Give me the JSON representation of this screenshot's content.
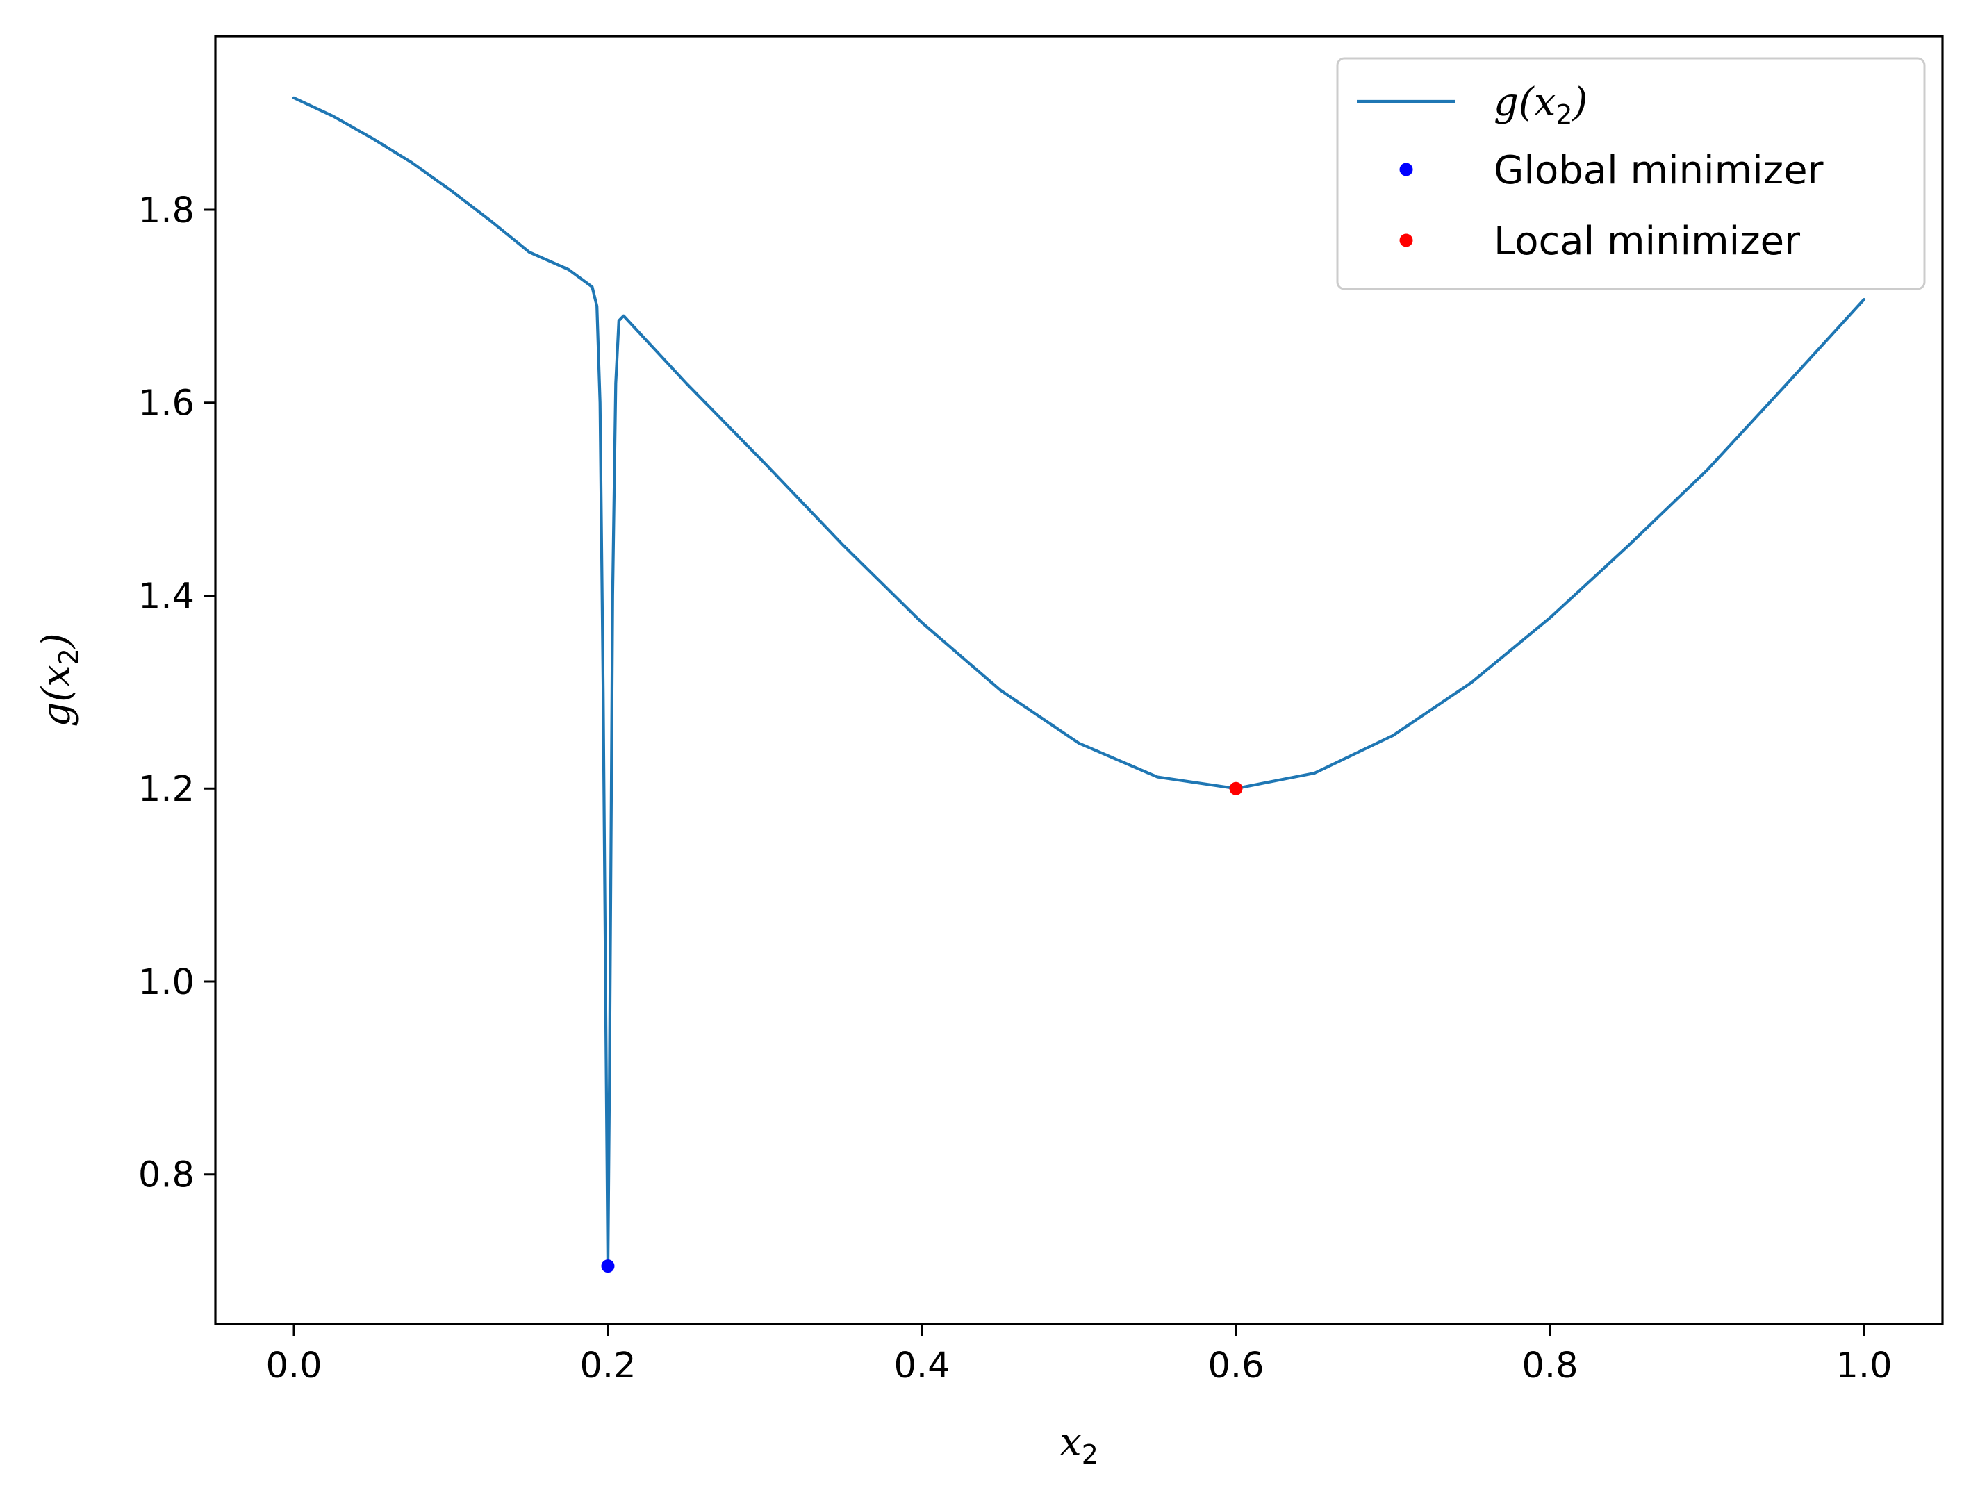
{
  "chart_data": {
    "type": "line",
    "title": "",
    "xlabel": "x_2",
    "ylabel": "g(x_2)",
    "xlim": [
      -0.05,
      1.05
    ],
    "ylim": [
      0.645,
      1.98
    ],
    "xticks": [
      0.0,
      0.2,
      0.4,
      0.6,
      0.8,
      1.0
    ],
    "xtick_labels": [
      "0.0",
      "0.2",
      "0.4",
      "0.6",
      "0.8",
      "1.0"
    ],
    "yticks": [
      0.8,
      1.0,
      1.2,
      1.4,
      1.6,
      1.8
    ],
    "ytick_labels": [
      "0.8",
      "1.0",
      "1.2",
      "1.4",
      "1.6",
      "1.8"
    ],
    "grid": false,
    "legend_position": "top-right",
    "series": [
      {
        "name": "g(x_2)",
        "kind": "line",
        "color": "#1f77b4",
        "x": [
          0.0,
          0.025,
          0.05,
          0.075,
          0.1,
          0.125,
          0.15,
          0.175,
          0.19,
          0.193,
          0.195,
          0.197,
          0.199,
          0.2,
          0.201,
          0.203,
          0.205,
          0.207,
          0.21,
          0.25,
          0.3,
          0.35,
          0.4,
          0.45,
          0.5,
          0.55,
          0.6,
          0.65,
          0.7,
          0.75,
          0.8,
          0.85,
          0.9,
          0.95,
          1.0
        ],
        "y": [
          1.916,
          1.897,
          1.874,
          1.849,
          1.82,
          1.789,
          1.756,
          1.738,
          1.72,
          1.7,
          1.6,
          1.3,
          0.9,
          0.705,
          0.9,
          1.4,
          1.62,
          1.685,
          1.69,
          1.62,
          1.537,
          1.452,
          1.372,
          1.302,
          1.247,
          1.212,
          1.2,
          1.216,
          1.255,
          1.31,
          1.377,
          1.452,
          1.53,
          1.618,
          1.707
        ]
      },
      {
        "name": "Global minimizer",
        "kind": "scatter",
        "color": "#0000ff",
        "x": [
          0.2
        ],
        "y": [
          0.705
        ]
      },
      {
        "name": "Local minimizer",
        "kind": "scatter",
        "color": "#ff0000",
        "x": [
          0.6
        ],
        "y": [
          1.2
        ]
      }
    ]
  }
}
